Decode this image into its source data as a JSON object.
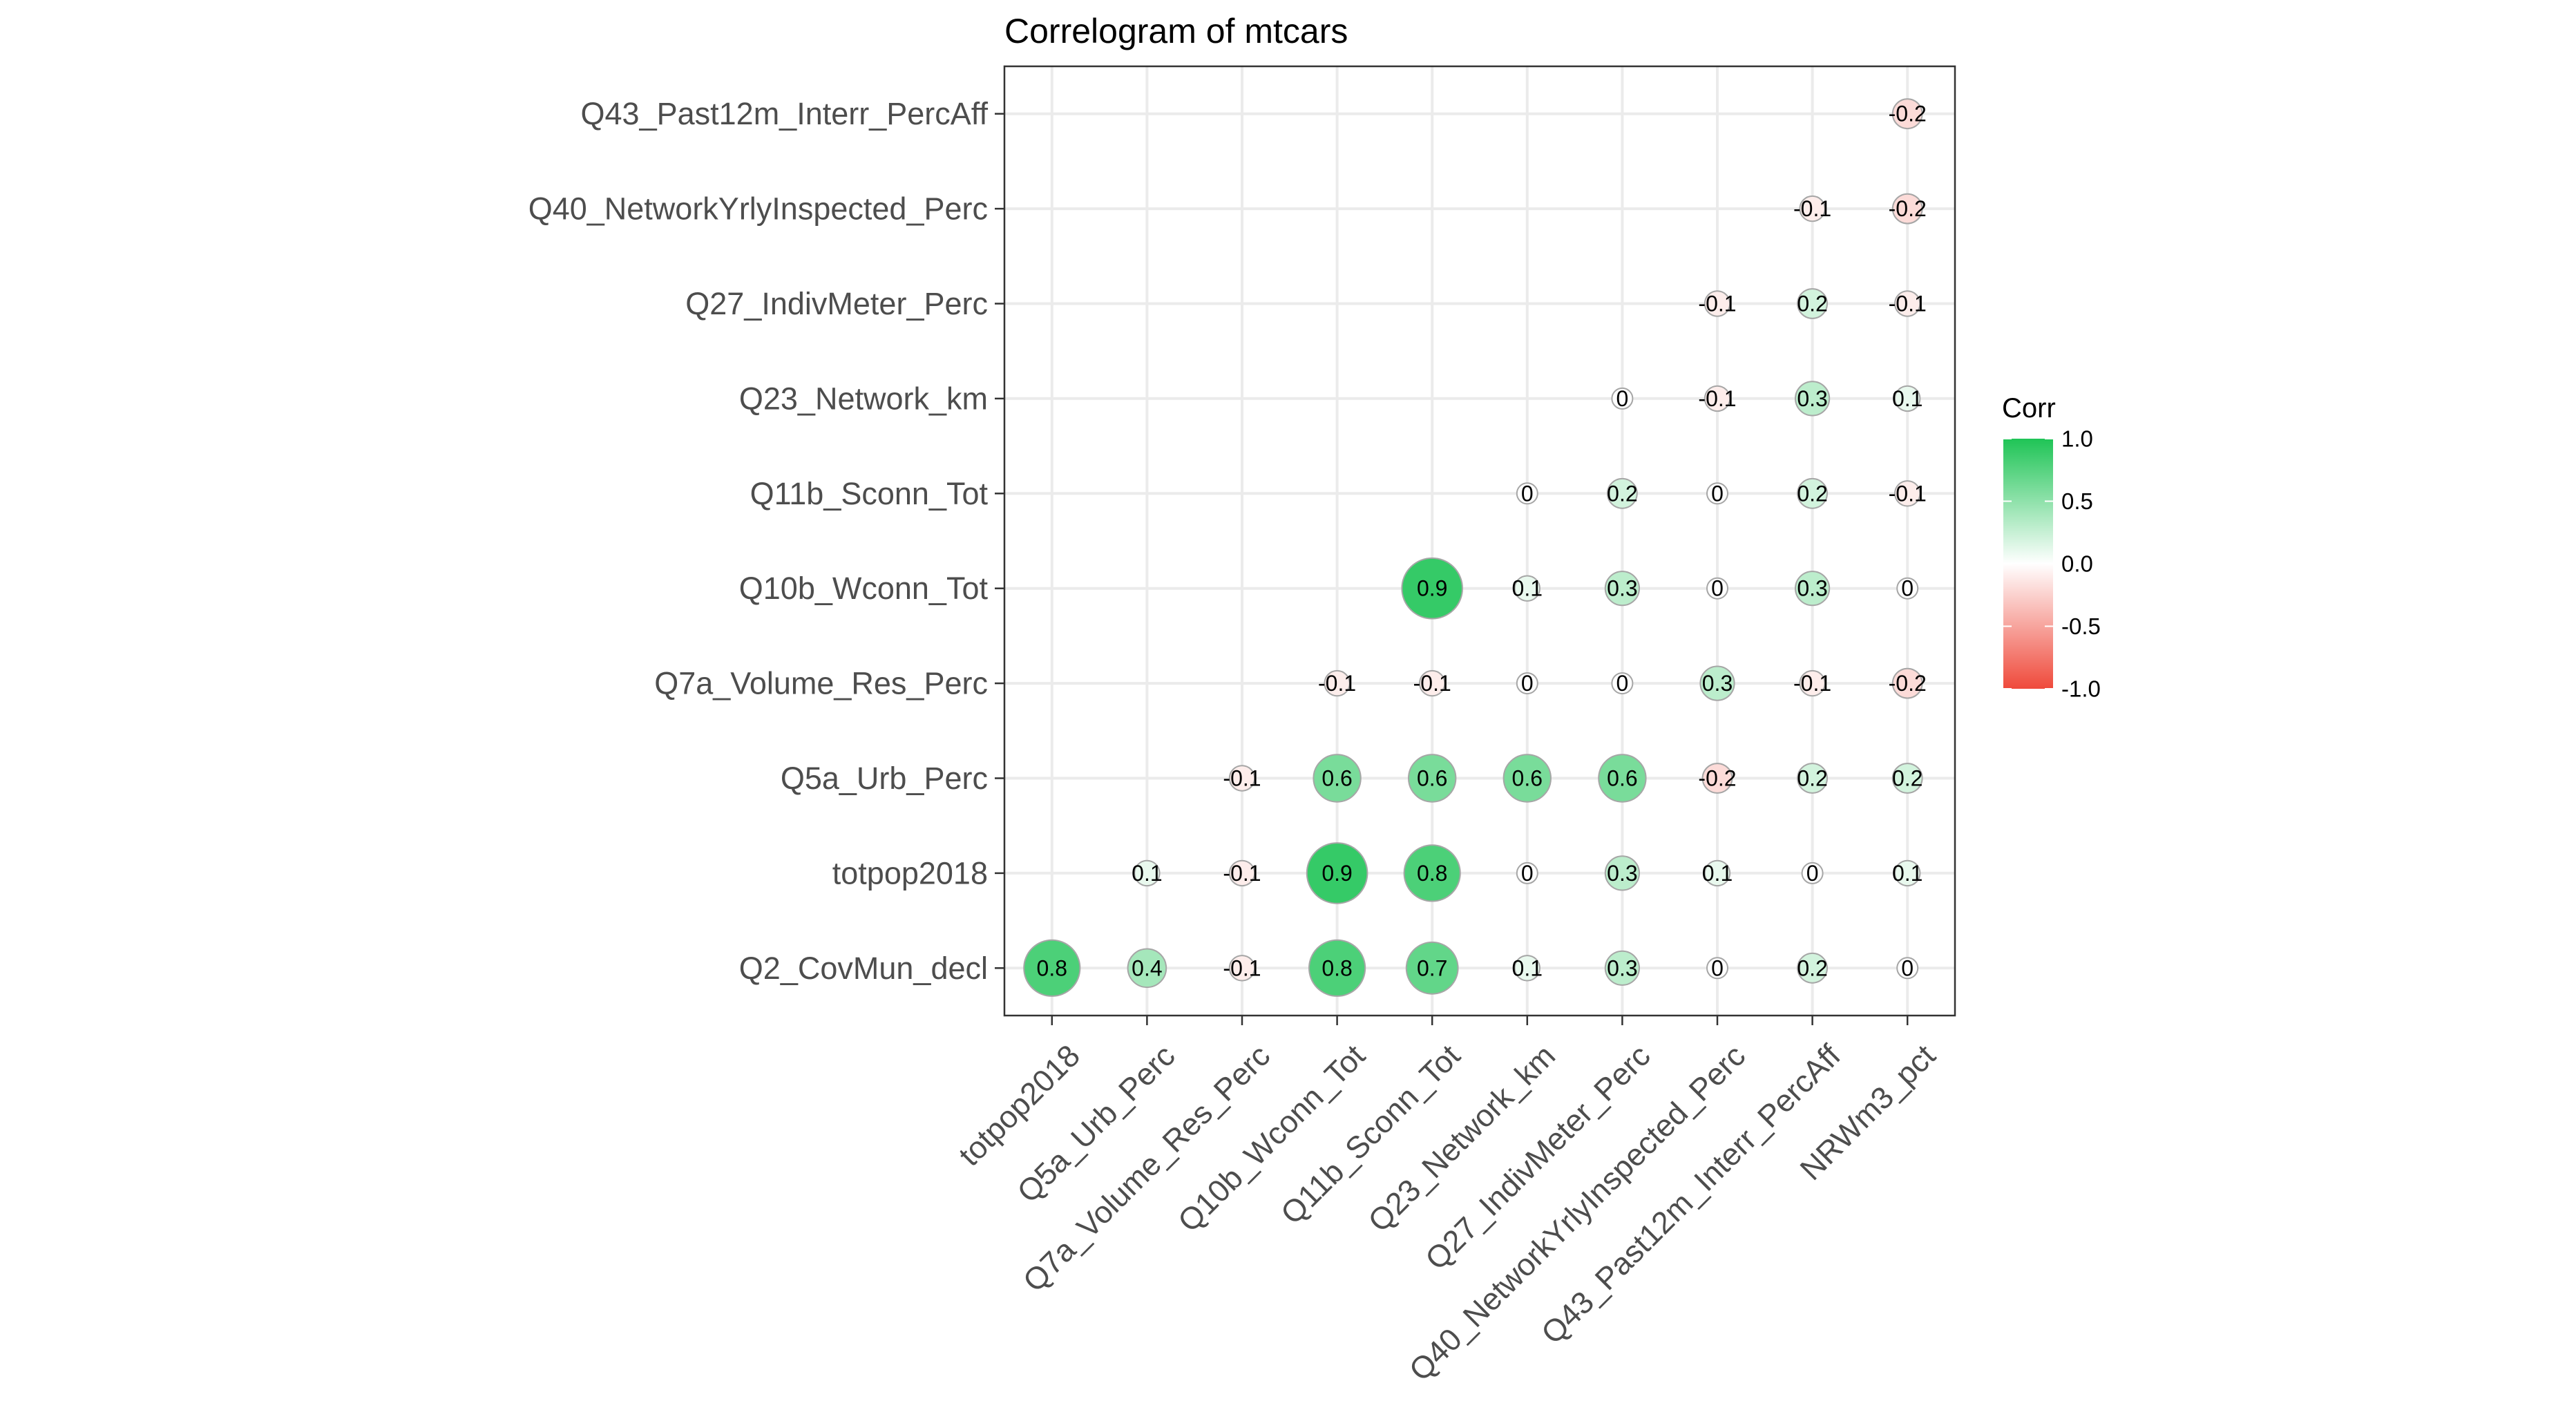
{
  "chart_data": {
    "type": "heatmap",
    "title": "Correlogram of mtcars",
    "x_labels": [
      "totpop2018",
      "Q5a_Urb_Perc",
      "Q7a_Volume_Res_Perc",
      "Q10b_Wconn_Tot",
      "Q11b_Sconn_Tot",
      "Q23_Network_km",
      "Q27_IndivMeter_Perc",
      "Q40_NetworkYrlyInspected_Perc",
      "Q43_Past12m_Interr_PercAff",
      "NRWm3_pct"
    ],
    "y_labels": [
      "Q2_CovMun_decl",
      "totpop2018",
      "Q5a_Urb_Perc",
      "Q7a_Volume_Res_Perc",
      "Q10b_Wconn_Tot",
      "Q11b_Sconn_Tot",
      "Q23_Network_km",
      "Q27_IndivMeter_Perc",
      "Q40_NetworkYrlyInspected_Perc",
      "Q43_Past12m_Interr_PercAff"
    ],
    "cells": [
      {
        "x": "totpop2018",
        "y": "Q2_CovMun_decl",
        "value": 0.8,
        "label": "0.8"
      },
      {
        "x": "Q5a_Urb_Perc",
        "y": "Q2_CovMun_decl",
        "value": 0.4,
        "label": "0.4"
      },
      {
        "x": "Q7a_Volume_Res_Perc",
        "y": "Q2_CovMun_decl",
        "value": -0.1,
        "label": "-0.1"
      },
      {
        "x": "Q10b_Wconn_Tot",
        "y": "Q2_CovMun_decl",
        "value": 0.8,
        "label": "0.8"
      },
      {
        "x": "Q11b_Sconn_Tot",
        "y": "Q2_CovMun_decl",
        "value": 0.7,
        "label": "0.7"
      },
      {
        "x": "Q23_Network_km",
        "y": "Q2_CovMun_decl",
        "value": 0.1,
        "label": "0.1"
      },
      {
        "x": "Q27_IndivMeter_Perc",
        "y": "Q2_CovMun_decl",
        "value": 0.3,
        "label": "0.3"
      },
      {
        "x": "Q40_NetworkYrlyInspected_Perc",
        "y": "Q2_CovMun_decl",
        "value": 0,
        "label": "0"
      },
      {
        "x": "Q43_Past12m_Interr_PercAff",
        "y": "Q2_CovMun_decl",
        "value": 0.2,
        "label": "0.2"
      },
      {
        "x": "NRWm3_pct",
        "y": "Q2_CovMun_decl",
        "value": 0,
        "label": "0"
      },
      {
        "x": "Q5a_Urb_Perc",
        "y": "totpop2018",
        "value": 0.1,
        "label": "0.1"
      },
      {
        "x": "Q7a_Volume_Res_Perc",
        "y": "totpop2018",
        "value": -0.1,
        "label": "-0.1"
      },
      {
        "x": "Q10b_Wconn_Tot",
        "y": "totpop2018",
        "value": 0.9,
        "label": "0.9"
      },
      {
        "x": "Q11b_Sconn_Tot",
        "y": "totpop2018",
        "value": 0.8,
        "label": "0.8"
      },
      {
        "x": "Q23_Network_km",
        "y": "totpop2018",
        "value": 0,
        "label": "0"
      },
      {
        "x": "Q27_IndivMeter_Perc",
        "y": "totpop2018",
        "value": 0.3,
        "label": "0.3"
      },
      {
        "x": "Q40_NetworkYrlyInspected_Perc",
        "y": "totpop2018",
        "value": 0.1,
        "label": "0.1"
      },
      {
        "x": "Q43_Past12m_Interr_PercAff",
        "y": "totpop2018",
        "value": 0,
        "label": "0"
      },
      {
        "x": "NRWm3_pct",
        "y": "totpop2018",
        "value": 0.1,
        "label": "0.1"
      },
      {
        "x": "Q7a_Volume_Res_Perc",
        "y": "Q5a_Urb_Perc",
        "value": -0.1,
        "label": "-0.1"
      },
      {
        "x": "Q10b_Wconn_Tot",
        "y": "Q5a_Urb_Perc",
        "value": 0.6,
        "label": "0.6"
      },
      {
        "x": "Q11b_Sconn_Tot",
        "y": "Q5a_Urb_Perc",
        "value": 0.6,
        "label": "0.6"
      },
      {
        "x": "Q23_Network_km",
        "y": "Q5a_Urb_Perc",
        "value": 0.6,
        "label": "0.6"
      },
      {
        "x": "Q27_IndivMeter_Perc",
        "y": "Q5a_Urb_Perc",
        "value": 0.6,
        "label": "0.6"
      },
      {
        "x": "Q40_NetworkYrlyInspected_Perc",
        "y": "Q5a_Urb_Perc",
        "value": -0.2,
        "label": "-0.2"
      },
      {
        "x": "Q43_Past12m_Interr_PercAff",
        "y": "Q5a_Urb_Perc",
        "value": 0.2,
        "label": "0.2"
      },
      {
        "x": "NRWm3_pct",
        "y": "Q5a_Urb_Perc",
        "value": 0.2,
        "label": "0.2"
      },
      {
        "x": "Q10b_Wconn_Tot",
        "y": "Q7a_Volume_Res_Perc",
        "value": -0.1,
        "label": "-0.1"
      },
      {
        "x": "Q11b_Sconn_Tot",
        "y": "Q7a_Volume_Res_Perc",
        "value": -0.1,
        "label": "-0.1"
      },
      {
        "x": "Q23_Network_km",
        "y": "Q7a_Volume_Res_Perc",
        "value": 0,
        "label": "0"
      },
      {
        "x": "Q27_IndivMeter_Perc",
        "y": "Q7a_Volume_Res_Perc",
        "value": 0,
        "label": "0"
      },
      {
        "x": "Q40_NetworkYrlyInspected_Perc",
        "y": "Q7a_Volume_Res_Perc",
        "value": 0.3,
        "label": "0.3"
      },
      {
        "x": "Q43_Past12m_Interr_PercAff",
        "y": "Q7a_Volume_Res_Perc",
        "value": -0.1,
        "label": "-0.1"
      },
      {
        "x": "NRWm3_pct",
        "y": "Q7a_Volume_Res_Perc",
        "value": -0.2,
        "label": "-0.2"
      },
      {
        "x": "Q11b_Sconn_Tot",
        "y": "Q10b_Wconn_Tot",
        "value": 0.9,
        "label": "0.9"
      },
      {
        "x": "Q23_Network_km",
        "y": "Q10b_Wconn_Tot",
        "value": 0.1,
        "label": "0.1"
      },
      {
        "x": "Q27_IndivMeter_Perc",
        "y": "Q10b_Wconn_Tot",
        "value": 0.3,
        "label": "0.3"
      },
      {
        "x": "Q40_NetworkYrlyInspected_Perc",
        "y": "Q10b_Wconn_Tot",
        "value": 0,
        "label": "0"
      },
      {
        "x": "Q43_Past12m_Interr_PercAff",
        "y": "Q10b_Wconn_Tot",
        "value": 0.3,
        "label": "0.3"
      },
      {
        "x": "NRWm3_pct",
        "y": "Q10b_Wconn_Tot",
        "value": 0,
        "label": "0"
      },
      {
        "x": "Q23_Network_km",
        "y": "Q11b_Sconn_Tot",
        "value": 0,
        "label": "0"
      },
      {
        "x": "Q27_IndivMeter_Perc",
        "y": "Q11b_Sconn_Tot",
        "value": 0.2,
        "label": "0.2"
      },
      {
        "x": "Q40_NetworkYrlyInspected_Perc",
        "y": "Q11b_Sconn_Tot",
        "value": 0,
        "label": "0"
      },
      {
        "x": "Q43_Past12m_Interr_PercAff",
        "y": "Q11b_Sconn_Tot",
        "value": 0.2,
        "label": "0.2"
      },
      {
        "x": "NRWm3_pct",
        "y": "Q11b_Sconn_Tot",
        "value": -0.1,
        "label": "-0.1"
      },
      {
        "x": "Q27_IndivMeter_Perc",
        "y": "Q23_Network_km",
        "value": 0,
        "label": "0"
      },
      {
        "x": "Q40_NetworkYrlyInspected_Perc",
        "y": "Q23_Network_km",
        "value": -0.1,
        "label": "-0.1"
      },
      {
        "x": "Q43_Past12m_Interr_PercAff",
        "y": "Q23_Network_km",
        "value": 0.3,
        "label": "0.3"
      },
      {
        "x": "NRWm3_pct",
        "y": "Q23_Network_km",
        "value": 0.1,
        "label": "0.1"
      },
      {
        "x": "Q40_NetworkYrlyInspected_Perc",
        "y": "Q27_IndivMeter_Perc",
        "value": -0.1,
        "label": "-0.1"
      },
      {
        "x": "Q43_Past12m_Interr_PercAff",
        "y": "Q27_IndivMeter_Perc",
        "value": 0.2,
        "label": "0.2"
      },
      {
        "x": "NRWm3_pct",
        "y": "Q27_IndivMeter_Perc",
        "value": -0.1,
        "label": "-0.1"
      },
      {
        "x": "Q43_Past12m_Interr_PercAff",
        "y": "Q40_NetworkYrlyInspected_Perc",
        "value": -0.1,
        "label": "-0.1"
      },
      {
        "x": "NRWm3_pct",
        "y": "Q40_NetworkYrlyInspected_Perc",
        "value": -0.2,
        "label": "-0.2"
      },
      {
        "x": "NRWm3_pct",
        "y": "Q43_Past12m_Interr_PercAff",
        "value": -0.2,
        "label": "-0.2"
      }
    ],
    "legend": {
      "title": "Corr",
      "ticks": [
        1.0,
        0.5,
        0.0,
        -0.5,
        -1.0
      ],
      "tick_labels": [
        "1.0",
        "0.5",
        "0.0",
        "-0.5",
        "-1.0"
      ],
      "range": [
        -1,
        1
      ],
      "placement": "right"
    },
    "colors": {
      "high": "#1fc456",
      "mid": "#ffffff",
      "low": "#ef4a3b"
    },
    "grid": true
  }
}
